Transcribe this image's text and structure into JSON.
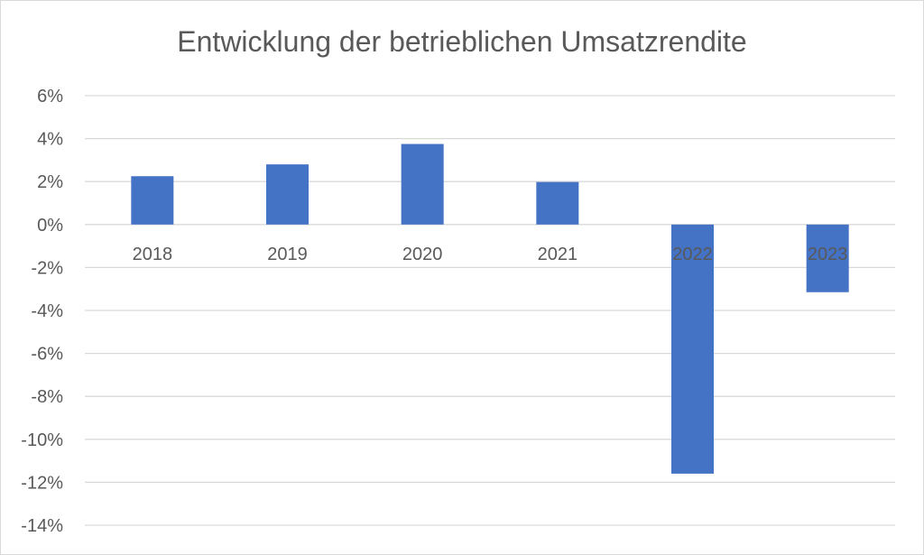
{
  "chart_data": {
    "type": "bar",
    "title": "Entwicklung der betrieblichen Umsatzrendite",
    "xlabel": "",
    "ylabel": "",
    "categories": [
      "2018",
      "2019",
      "2020",
      "2021",
      "2022",
      "2023"
    ],
    "values": [
      2.25,
      2.8,
      3.75,
      1.98,
      -11.6,
      -3.15
    ],
    "ylim": [
      -14,
      6
    ],
    "yticks": [
      "6%",
      "4%",
      "2%",
      "0%",
      "-2%",
      "-4%",
      "-6%",
      "-8%",
      "-10%",
      "-12%",
      "-14%"
    ],
    "grid": true,
    "legend": "none",
    "bar_color": "#4472C4",
    "grid_color": "#d9d9d9"
  }
}
